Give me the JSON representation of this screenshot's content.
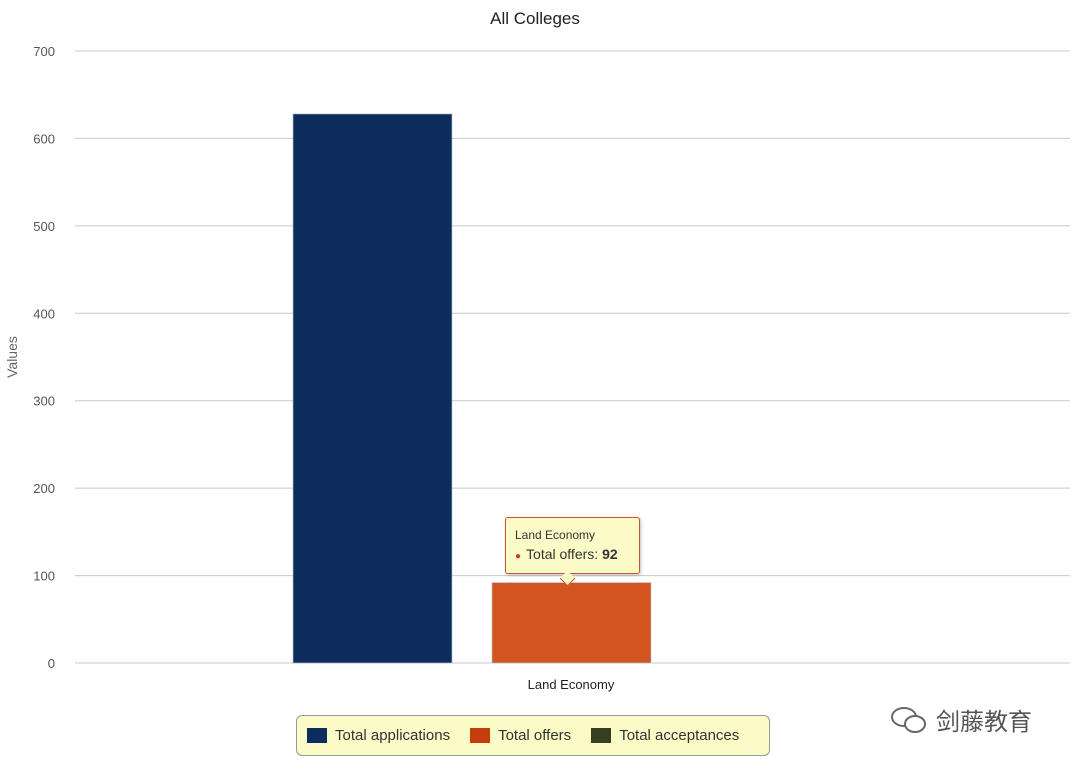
{
  "chart_data": {
    "type": "bar",
    "title": "All Colleges",
    "xlabel": "",
    "ylabel": "Values",
    "categories": [
      "Land Economy"
    ],
    "series": [
      {
        "name": "Total applications",
        "values": [
          628
        ],
        "color": "#0d2d5c"
      },
      {
        "name": "Total offers",
        "values": [
          92
        ],
        "color": "#d2541f"
      },
      {
        "name": "Total acceptances",
        "values": [
          0
        ],
        "color": "#333f1f"
      }
    ],
    "ylim": [
      0,
      700
    ],
    "yticks": [
      "0",
      "100",
      "200",
      "300",
      "400",
      "500",
      "600",
      "700"
    ],
    "grid": true,
    "legend_position": "bottom-center"
  },
  "tooltip": {
    "title": "Land Economy",
    "label": "Total offers:",
    "value": "92"
  },
  "watermark": "剑藤教育"
}
